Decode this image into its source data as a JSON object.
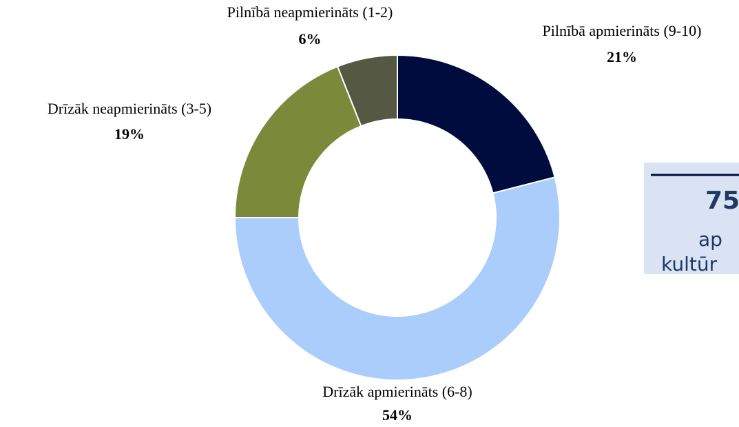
{
  "chart_data": {
    "type": "donut",
    "categories": [
      "Pilnībā apmierināts (9-10)",
      "Drīzāk apmierināts (6-8)",
      "Drīzāk neapmierināts (3-5)",
      "Pilnībā neapmierināts (1-2)"
    ],
    "values": [
      21,
      54,
      19,
      6
    ],
    "value_labels": [
      "21%",
      "54%",
      "19%",
      "6%"
    ],
    "colors": [
      "#000c3e",
      "#aacdfc",
      "#7a8a3a",
      "#555843"
    ],
    "annotation": {
      "lines": [
        "75",
        "ap",
        "kultūr"
      ]
    }
  }
}
